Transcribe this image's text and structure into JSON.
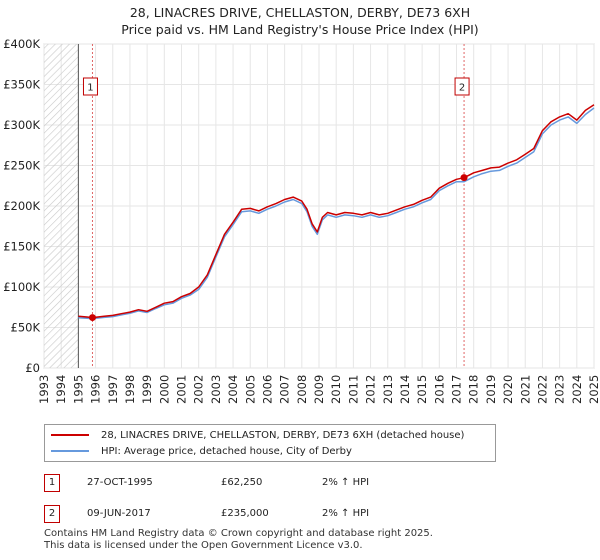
{
  "title_line1": "28, LINACRES DRIVE, CHELLASTON, DERBY, DE73 6XH",
  "title_line2": "Price paid vs. HM Land Registry's House Price Index (HPI)",
  "chart_data": {
    "type": "line",
    "title": "28, LINACRES DRIVE, CHELLASTON, DERBY, DE73 6XH — Price paid vs. HM Land Registry's House Price Index (HPI)",
    "xlabel": "",
    "ylabel": "",
    "xlim": [
      1993,
      2025
    ],
    "ylim": [
      0,
      400000
    ],
    "y_ticks": [
      0,
      50000,
      100000,
      150000,
      200000,
      250000,
      300000,
      350000,
      400000
    ],
    "y_tick_labels": [
      "£0",
      "£50K",
      "£100K",
      "£150K",
      "£200K",
      "£250K",
      "£300K",
      "£350K",
      "£400K"
    ],
    "x_ticks": [
      1993,
      1994,
      1995,
      1996,
      1997,
      1998,
      1999,
      2000,
      2001,
      2002,
      2003,
      2004,
      2005,
      2006,
      2007,
      2008,
      2009,
      2010,
      2011,
      2012,
      2013,
      2014,
      2015,
      2016,
      2017,
      2018,
      2019,
      2020,
      2021,
      2022,
      2023,
      2024,
      2025
    ],
    "grid": true,
    "hatched_regions": [
      [
        1993,
        1995
      ]
    ],
    "series": [
      {
        "name": "28, LINACRES DRIVE, CHELLASTON, DERBY, DE73 6XH (detached house)",
        "color": "#cc0000",
        "x": [
          1995.0,
          1995.5,
          1995.82,
          1996.5,
          1997.0,
          1997.5,
          1998.0,
          1998.5,
          1999.0,
          1999.5,
          2000.0,
          2000.5,
          2001.0,
          2001.5,
          2002.0,
          2002.5,
          2003.0,
          2003.5,
          2004.0,
          2004.5,
          2005.0,
          2005.5,
          2006.0,
          2006.5,
          2007.0,
          2007.5,
          2008.0,
          2008.3,
          2008.6,
          2008.9,
          2009.2,
          2009.5,
          2010.0,
          2010.5,
          2011.0,
          2011.5,
          2012.0,
          2012.5,
          2013.0,
          2013.5,
          2014.0,
          2014.5,
          2015.0,
          2015.5,
          2016.0,
          2016.5,
          2017.0,
          2017.44,
          2018.0,
          2018.5,
          2019.0,
          2019.5,
          2020.0,
          2020.5,
          2021.0,
          2021.5,
          2022.0,
          2022.5,
          2023.0,
          2023.5,
          2024.0,
          2024.5,
          2025.0
        ],
        "y": [
          64000,
          63000,
          62250,
          64000,
          65000,
          67000,
          69000,
          72000,
          70000,
          75000,
          80000,
          82000,
          88000,
          92000,
          100000,
          115000,
          140000,
          165000,
          180000,
          196000,
          197000,
          194000,
          199000,
          203000,
          208000,
          211000,
          206000,
          196000,
          178000,
          168000,
          186000,
          192000,
          189000,
          192000,
          191000,
          189000,
          192000,
          189000,
          191000,
          195000,
          199000,
          202000,
          207000,
          211000,
          222000,
          228000,
          233000,
          235000,
          241000,
          244000,
          247000,
          248000,
          253000,
          257000,
          264000,
          271000,
          293000,
          304000,
          310000,
          314000,
          306000,
          318000,
          325000
        ]
      },
      {
        "name": "HPI: Average price, detached house, City of Derby",
        "color": "#6699dd",
        "x": [
          1995.0,
          1995.5,
          1995.82,
          1996.5,
          1997.0,
          1997.5,
          1998.0,
          1998.5,
          1999.0,
          1999.5,
          2000.0,
          2000.5,
          2001.0,
          2001.5,
          2002.0,
          2002.5,
          2003.0,
          2003.5,
          2004.0,
          2004.5,
          2005.0,
          2005.5,
          2006.0,
          2006.5,
          2007.0,
          2007.5,
          2008.0,
          2008.3,
          2008.6,
          2008.9,
          2009.2,
          2009.5,
          2010.0,
          2010.5,
          2011.0,
          2011.5,
          2012.0,
          2012.5,
          2013.0,
          2013.5,
          2014.0,
          2014.5,
          2015.0,
          2015.5,
          2016.0,
          2016.5,
          2017.0,
          2017.44,
          2018.0,
          2018.5,
          2019.0,
          2019.5,
          2020.0,
          2020.5,
          2021.0,
          2021.5,
          2022.0,
          2022.5,
          2023.0,
          2023.5,
          2024.0,
          2024.5,
          2025.0
        ],
        "y": [
          62000,
          61500,
          61000,
          62500,
          63500,
          65500,
          67500,
          70500,
          68500,
          73500,
          78000,
          80000,
          86000,
          90000,
          97000,
          112000,
          137000,
          162000,
          177000,
          193000,
          194000,
          191000,
          196000,
          200000,
          205000,
          208000,
          203000,
          193000,
          175000,
          165000,
          183000,
          189000,
          186000,
          189000,
          188000,
          186000,
          189000,
          186000,
          188000,
          192000,
          196000,
          199000,
          204000,
          208000,
          219000,
          225000,
          230000,
          230000,
          236000,
          240000,
          243000,
          244000,
          249000,
          253000,
          260000,
          267000,
          289000,
          300000,
          306000,
          310000,
          302000,
          313000,
          321000
        ]
      }
    ],
    "sale_markers": [
      {
        "label": "1",
        "x": 1995.82,
        "y": 62250
      },
      {
        "label": "2",
        "x": 2017.44,
        "y": 235000
      }
    ]
  },
  "legend": {
    "property_label": "28, LINACRES DRIVE, CHELLASTON, DERBY, DE73 6XH (detached house)",
    "hpi_label": "HPI: Average price, detached house, City of Derby",
    "property_color": "#cc0000",
    "hpi_color": "#6699dd"
  },
  "sales": [
    {
      "marker": "1",
      "date": "27-OCT-1995",
      "price": "£62,250",
      "hpi": "2% ↑ HPI"
    },
    {
      "marker": "2",
      "date": "09-JUN-2017",
      "price": "£235,000",
      "hpi": "2% ↑ HPI"
    }
  ],
  "footer_line1": "Contains HM Land Registry data © Crown copyright and database right 2025.",
  "footer_line2": "This data is licensed under the Open Government Licence v3.0."
}
